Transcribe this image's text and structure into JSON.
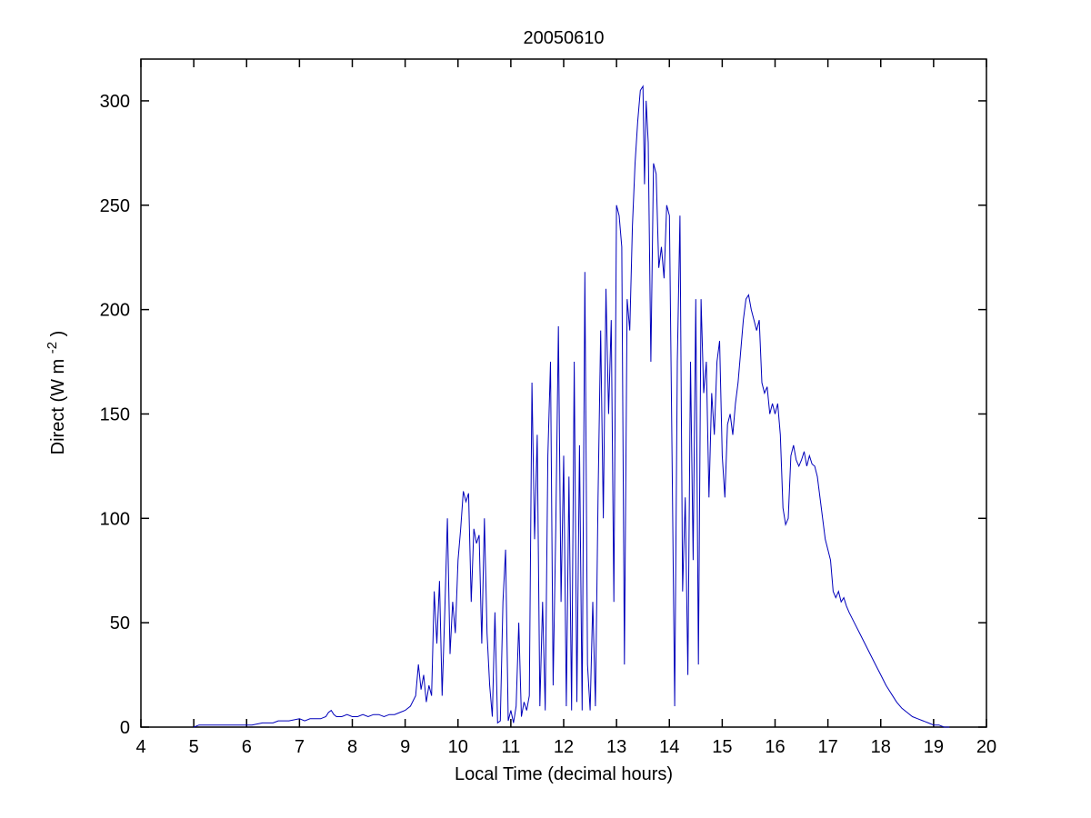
{
  "figure": {
    "background": "#ffffff"
  },
  "chart_data": {
    "type": "line",
    "title": "20050610",
    "xlabel": "Local Time (decimal hours)",
    "ylabel_prefix": "Direct (W m",
    "ylabel_sup": "-2",
    "ylabel_suffix": ")",
    "xlim": [
      4,
      20
    ],
    "ylim": [
      0,
      320
    ],
    "x_ticks": [
      4,
      5,
      6,
      7,
      8,
      9,
      10,
      11,
      12,
      13,
      14,
      15,
      16,
      17,
      18,
      19,
      20
    ],
    "y_ticks": [
      0,
      50,
      100,
      150,
      200,
      250,
      300
    ],
    "grid": false,
    "legend": null,
    "line_color": "#0000bb",
    "axis_color": "#000000",
    "points": [
      [
        5.0,
        0
      ],
      [
        5.1,
        1
      ],
      [
        5.3,
        1
      ],
      [
        5.5,
        1
      ],
      [
        5.7,
        1
      ],
      [
        5.9,
        1
      ],
      [
        6.1,
        1
      ],
      [
        6.3,
        2
      ],
      [
        6.5,
        2
      ],
      [
        6.6,
        3
      ],
      [
        6.8,
        3
      ],
      [
        7.0,
        4
      ],
      [
        7.1,
        3
      ],
      [
        7.2,
        4
      ],
      [
        7.3,
        4
      ],
      [
        7.4,
        4
      ],
      [
        7.5,
        5
      ],
      [
        7.55,
        7
      ],
      [
        7.6,
        8
      ],
      [
        7.65,
        6
      ],
      [
        7.7,
        5
      ],
      [
        7.8,
        5
      ],
      [
        7.9,
        6
      ],
      [
        8.0,
        5
      ],
      [
        8.1,
        5
      ],
      [
        8.2,
        6
      ],
      [
        8.3,
        5
      ],
      [
        8.4,
        6
      ],
      [
        8.5,
        6
      ],
      [
        8.6,
        5
      ],
      [
        8.7,
        6
      ],
      [
        8.8,
        6
      ],
      [
        8.9,
        7
      ],
      [
        9.0,
        8
      ],
      [
        9.1,
        10
      ],
      [
        9.2,
        15
      ],
      [
        9.25,
        30
      ],
      [
        9.3,
        18
      ],
      [
        9.35,
        25
      ],
      [
        9.4,
        12
      ],
      [
        9.45,
        20
      ],
      [
        9.5,
        15
      ],
      [
        9.55,
        65
      ],
      [
        9.6,
        40
      ],
      [
        9.65,
        70
      ],
      [
        9.7,
        15
      ],
      [
        9.75,
        55
      ],
      [
        9.8,
        100
      ],
      [
        9.85,
        35
      ],
      [
        9.9,
        60
      ],
      [
        9.95,
        45
      ],
      [
        10.0,
        80
      ],
      [
        10.05,
        95
      ],
      [
        10.1,
        113
      ],
      [
        10.15,
        108
      ],
      [
        10.2,
        112
      ],
      [
        10.25,
        60
      ],
      [
        10.3,
        95
      ],
      [
        10.35,
        88
      ],
      [
        10.4,
        92
      ],
      [
        10.45,
        40
      ],
      [
        10.5,
        100
      ],
      [
        10.55,
        45
      ],
      [
        10.6,
        20
      ],
      [
        10.65,
        5
      ],
      [
        10.7,
        55
      ],
      [
        10.75,
        2
      ],
      [
        10.8,
        3
      ],
      [
        10.85,
        60
      ],
      [
        10.9,
        85
      ],
      [
        10.95,
        3
      ],
      [
        11.0,
        8
      ],
      [
        11.05,
        2
      ],
      [
        11.1,
        10
      ],
      [
        11.15,
        50
      ],
      [
        11.2,
        5
      ],
      [
        11.25,
        12
      ],
      [
        11.3,
        8
      ],
      [
        11.35,
        15
      ],
      [
        11.4,
        165
      ],
      [
        11.45,
        90
      ],
      [
        11.5,
        140
      ],
      [
        11.55,
        10
      ],
      [
        11.6,
        60
      ],
      [
        11.65,
        8
      ],
      [
        11.7,
        130
      ],
      [
        11.75,
        175
      ],
      [
        11.8,
        20
      ],
      [
        11.85,
        95
      ],
      [
        11.9,
        192
      ],
      [
        11.95,
        60
      ],
      [
        12.0,
        130
      ],
      [
        12.05,
        10
      ],
      [
        12.1,
        120
      ],
      [
        12.15,
        8
      ],
      [
        12.2,
        175
      ],
      [
        12.25,
        12
      ],
      [
        12.3,
        135
      ],
      [
        12.35,
        8
      ],
      [
        12.4,
        218
      ],
      [
        12.45,
        30
      ],
      [
        12.5,
        8
      ],
      [
        12.55,
        60
      ],
      [
        12.6,
        10
      ],
      [
        12.65,
        110
      ],
      [
        12.7,
        190
      ],
      [
        12.75,
        100
      ],
      [
        12.8,
        210
      ],
      [
        12.85,
        150
      ],
      [
        12.9,
        195
      ],
      [
        12.95,
        60
      ],
      [
        13.0,
        250
      ],
      [
        13.05,
        245
      ],
      [
        13.1,
        230
      ],
      [
        13.15,
        30
      ],
      [
        13.2,
        205
      ],
      [
        13.25,
        190
      ],
      [
        13.3,
        240
      ],
      [
        13.35,
        270
      ],
      [
        13.4,
        290
      ],
      [
        13.45,
        305
      ],
      [
        13.5,
        307
      ],
      [
        13.53,
        260
      ],
      [
        13.56,
        300
      ],
      [
        13.6,
        280
      ],
      [
        13.65,
        175
      ],
      [
        13.7,
        270
      ],
      [
        13.75,
        265
      ],
      [
        13.8,
        220
      ],
      [
        13.85,
        230
      ],
      [
        13.9,
        215
      ],
      [
        13.95,
        250
      ],
      [
        14.0,
        245
      ],
      [
        14.05,
        130
      ],
      [
        14.1,
        10
      ],
      [
        14.15,
        175
      ],
      [
        14.2,
        245
      ],
      [
        14.25,
        65
      ],
      [
        14.3,
        110
      ],
      [
        14.35,
        25
      ],
      [
        14.4,
        175
      ],
      [
        14.45,
        80
      ],
      [
        14.5,
        205
      ],
      [
        14.55,
        30
      ],
      [
        14.6,
        205
      ],
      [
        14.65,
        160
      ],
      [
        14.7,
        175
      ],
      [
        14.75,
        110
      ],
      [
        14.8,
        160
      ],
      [
        14.85,
        140
      ],
      [
        14.9,
        175
      ],
      [
        14.95,
        185
      ],
      [
        15.0,
        130
      ],
      [
        15.05,
        110
      ],
      [
        15.1,
        145
      ],
      [
        15.15,
        150
      ],
      [
        15.2,
        140
      ],
      [
        15.25,
        155
      ],
      [
        15.3,
        165
      ],
      [
        15.35,
        180
      ],
      [
        15.4,
        195
      ],
      [
        15.45,
        205
      ],
      [
        15.5,
        207
      ],
      [
        15.55,
        200
      ],
      [
        15.6,
        195
      ],
      [
        15.65,
        190
      ],
      [
        15.7,
        195
      ],
      [
        15.75,
        165
      ],
      [
        15.8,
        160
      ],
      [
        15.85,
        163
      ],
      [
        15.9,
        150
      ],
      [
        15.95,
        155
      ],
      [
        16.0,
        150
      ],
      [
        16.05,
        155
      ],
      [
        16.1,
        140
      ],
      [
        16.15,
        105
      ],
      [
        16.2,
        97
      ],
      [
        16.25,
        100
      ],
      [
        16.3,
        130
      ],
      [
        16.35,
        135
      ],
      [
        16.4,
        128
      ],
      [
        16.45,
        125
      ],
      [
        16.5,
        128
      ],
      [
        16.55,
        132
      ],
      [
        16.6,
        125
      ],
      [
        16.65,
        130
      ],
      [
        16.7,
        126
      ],
      [
        16.75,
        125
      ],
      [
        16.8,
        120
      ],
      [
        16.85,
        110
      ],
      [
        16.9,
        100
      ],
      [
        16.95,
        90
      ],
      [
        17.0,
        85
      ],
      [
        17.05,
        80
      ],
      [
        17.1,
        65
      ],
      [
        17.15,
        62
      ],
      [
        17.2,
        65
      ],
      [
        17.25,
        60
      ],
      [
        17.3,
        62
      ],
      [
        17.35,
        58
      ],
      [
        17.4,
        55
      ],
      [
        17.5,
        50
      ],
      [
        17.6,
        45
      ],
      [
        17.7,
        40
      ],
      [
        17.8,
        35
      ],
      [
        17.9,
        30
      ],
      [
        18.0,
        25
      ],
      [
        18.1,
        20
      ],
      [
        18.2,
        16
      ],
      [
        18.3,
        12
      ],
      [
        18.4,
        9
      ],
      [
        18.5,
        7
      ],
      [
        18.6,
        5
      ],
      [
        18.7,
        4
      ],
      [
        18.8,
        3
      ],
      [
        18.9,
        2
      ],
      [
        19.0,
        1
      ],
      [
        19.1,
        1
      ],
      [
        19.2,
        0
      ],
      [
        19.3,
        0
      ]
    ]
  }
}
